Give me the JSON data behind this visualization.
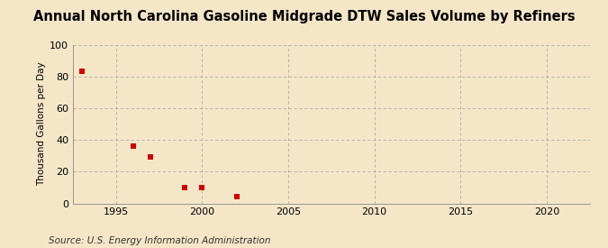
{
  "title": "Annual North Carolina Gasoline Midgrade DTW Sales Volume by Refiners",
  "ylabel": "Thousand Gallons per Day",
  "source": "Source: U.S. Energy Information Administration",
  "background_color": "#f5e6c8",
  "plot_bg_color": "#f5e6c8",
  "data_x": [
    1993,
    1996,
    1997,
    1999,
    2000,
    2002
  ],
  "data_y": [
    83,
    36,
    29,
    10,
    10,
    4
  ],
  "marker_color": "#cc0000",
  "marker_size": 18,
  "xlim": [
    1992.5,
    2022.5
  ],
  "ylim": [
    0,
    100
  ],
  "xticks": [
    1995,
    2000,
    2005,
    2010,
    2015,
    2020
  ],
  "yticks": [
    0,
    20,
    40,
    60,
    80,
    100
  ],
  "grid_color": "#aaaaaa",
  "title_fontsize": 10.5,
  "label_fontsize": 7.5,
  "tick_fontsize": 8,
  "source_fontsize": 7.5
}
